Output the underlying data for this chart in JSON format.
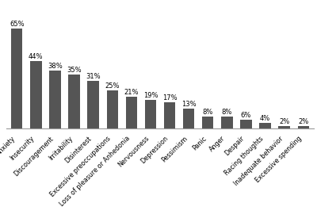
{
  "categories": [
    "Anxiety",
    "Insecurity",
    "Discouragement",
    "Irritability",
    "Disinterest",
    "Excessive preoccupations",
    "Loss of pleasure or Anhedonia",
    "Nervousness",
    "Depression",
    "Pessimism",
    "Panic",
    "Anger",
    "Despair",
    "Racing thoughts",
    "Inadequate behavior",
    "Excessive spending"
  ],
  "values": [
    65,
    44,
    38,
    35,
    31,
    25,
    21,
    19,
    17,
    13,
    8,
    8,
    6,
    4,
    2,
    2
  ],
  "bar_color": "#555555",
  "tick_fontsize": 5.8,
  "value_fontsize": 6.0,
  "background_color": "#ffffff",
  "ylim": [
    0,
    75
  ],
  "bar_width": 0.6
}
